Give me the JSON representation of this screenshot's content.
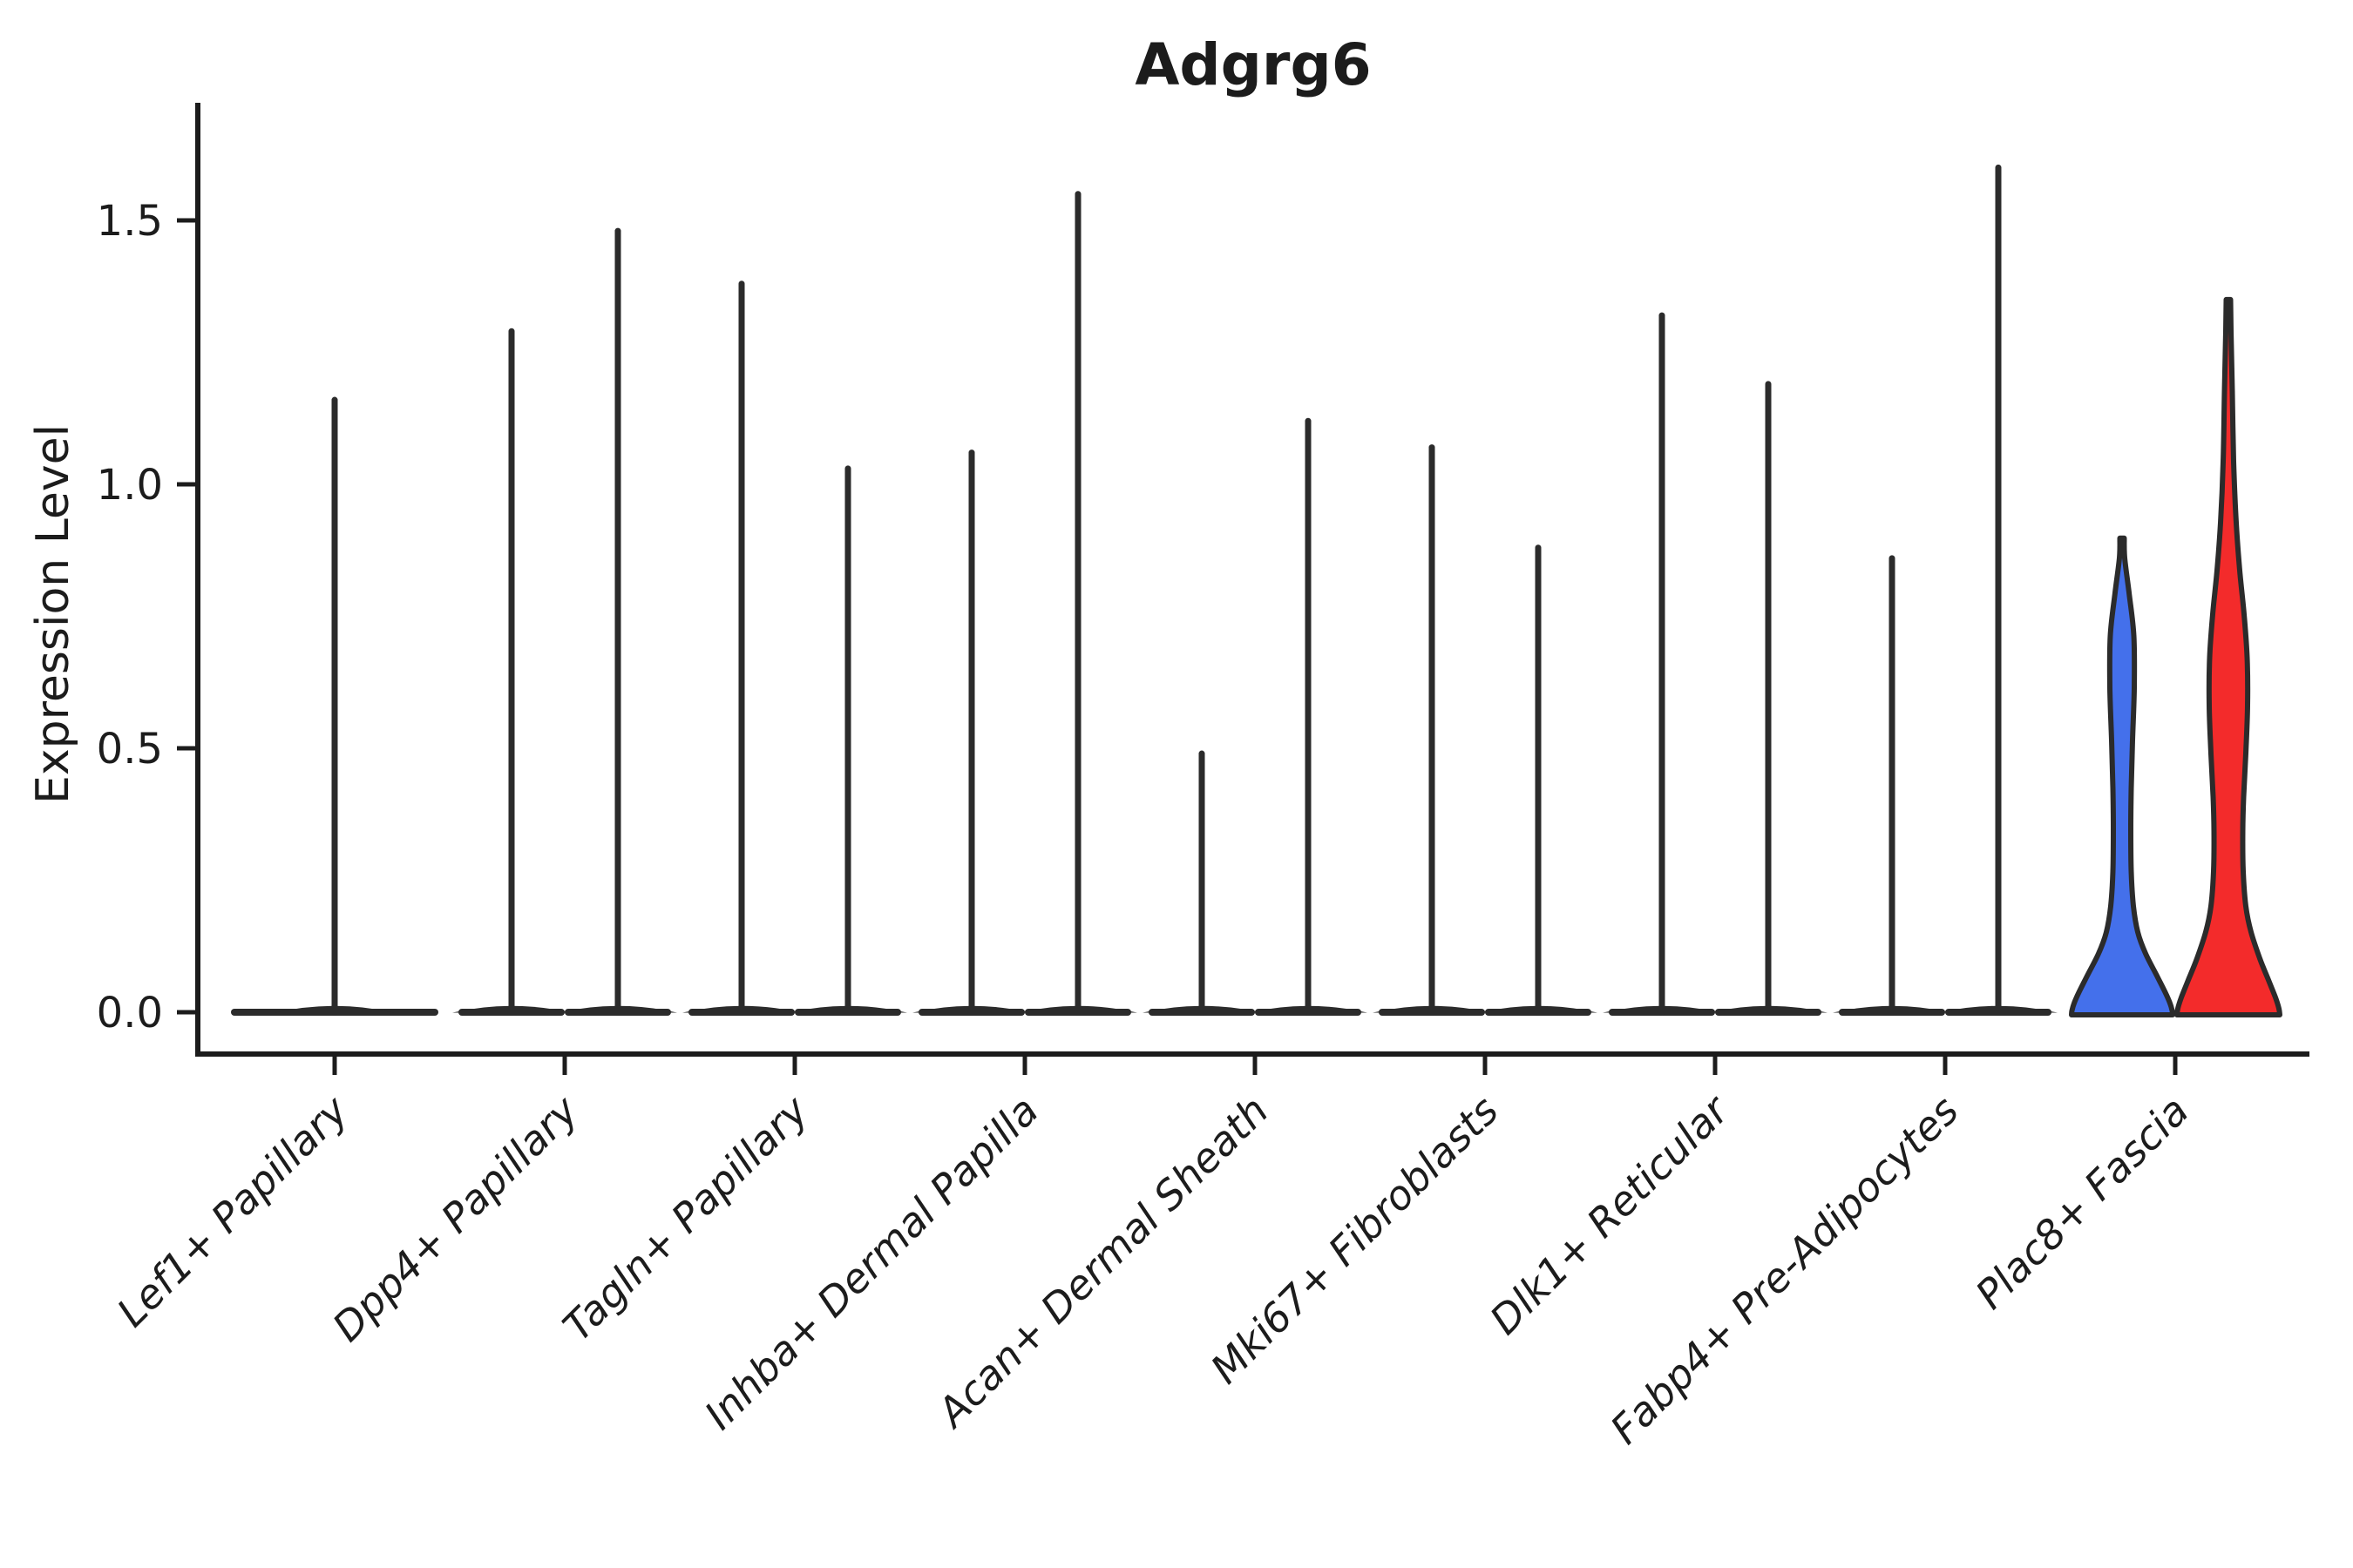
{
  "title": "Adgrg6",
  "chart_data": {
    "type": "violin",
    "title": "Adgrg6",
    "xlabel": "",
    "ylabel": "Expression Level",
    "ytick_labels": [
      "0.0",
      "0.5",
      "1.0",
      "1.5"
    ],
    "ytick_values": [
      0.0,
      0.5,
      1.0,
      1.5
    ],
    "ylim": [
      -0.09,
      1.77
    ],
    "grid": "off",
    "legend": "none",
    "categories": [
      "Lef1+ Papillary",
      "Dpp4+ Papillary",
      "Tagln+ Papillary",
      "Inhba+ Dermal Papilla",
      "Acan+ Dermal Sheath",
      "Mki67+ Fibroblasts",
      "Dlk1+ Reticular",
      "Fabp4+ Pre-Adipocytes",
      "Plac8+ Fascia"
    ],
    "groups": [
      {
        "name": "split-group-1",
        "color": "#4470EB"
      },
      {
        "name": "split-group-2",
        "color": "#F32B2B"
      }
    ],
    "violins": [
      {
        "category": "Lef1+ Papillary",
        "cat_index": 0,
        "slot": "center",
        "max_expression": 1.16,
        "body": "flat"
      },
      {
        "category": "Dpp4+ Papillary",
        "cat_index": 1,
        "slot": "left",
        "max_expression": 1.29,
        "body": "flat"
      },
      {
        "category": "Dpp4+ Papillary",
        "cat_index": 1,
        "slot": "right",
        "max_expression": 1.48,
        "body": "flat"
      },
      {
        "category": "Tagln+ Papillary",
        "cat_index": 2,
        "slot": "left",
        "max_expression": 1.38,
        "body": "flat"
      },
      {
        "category": "Tagln+ Papillary",
        "cat_index": 2,
        "slot": "right",
        "max_expression": 1.03,
        "body": "flat"
      },
      {
        "category": "Inhba+ Dermal Papilla",
        "cat_index": 3,
        "slot": "left",
        "max_expression": 1.06,
        "body": "flat"
      },
      {
        "category": "Inhba+ Dermal Papilla",
        "cat_index": 3,
        "slot": "right",
        "max_expression": 1.55,
        "body": "flat"
      },
      {
        "category": "Acan+ Dermal Sheath",
        "cat_index": 4,
        "slot": "left",
        "max_expression": 0.49,
        "body": "flat"
      },
      {
        "category": "Acan+ Dermal Sheath",
        "cat_index": 4,
        "slot": "right",
        "max_expression": 1.12,
        "body": "flat"
      },
      {
        "category": "Mki67+ Fibroblasts",
        "cat_index": 5,
        "slot": "left",
        "max_expression": 1.07,
        "body": "flat"
      },
      {
        "category": "Mki67+ Fibroblasts",
        "cat_index": 5,
        "slot": "right",
        "max_expression": 0.88,
        "body": "flat"
      },
      {
        "category": "Dlk1+ Reticular",
        "cat_index": 6,
        "slot": "left",
        "max_expression": 1.32,
        "body": "flat"
      },
      {
        "category": "Dlk1+ Reticular",
        "cat_index": 6,
        "slot": "right",
        "max_expression": 1.19,
        "body": "flat"
      },
      {
        "category": "Fabp4+ Pre-Adipocytes",
        "cat_index": 7,
        "slot": "left",
        "max_expression": 0.86,
        "body": "flat"
      },
      {
        "category": "Fabp4+ Pre-Adipocytes",
        "cat_index": 7,
        "slot": "right",
        "max_expression": 1.6,
        "body": "flat"
      },
      {
        "category": "Plac8+ Fascia",
        "cat_index": 8,
        "slot": "left",
        "max_expression": 0.9,
        "body": "filled",
        "fill": "#4470EB",
        "profile": [
          [
            0.898,
            0.042
          ],
          [
            0.861,
            0.05
          ],
          [
            0.795,
            0.133
          ],
          [
            0.713,
            0.225
          ],
          [
            0.614,
            0.233
          ],
          [
            0.515,
            0.2
          ],
          [
            0.424,
            0.175
          ],
          [
            0.35,
            0.167
          ],
          [
            0.267,
            0.175
          ],
          [
            0.201,
            0.217
          ],
          [
            0.152,
            0.3
          ],
          [
            0.111,
            0.45
          ],
          [
            0.069,
            0.667
          ],
          [
            0.036,
            0.833
          ],
          [
            0.017,
            0.917
          ],
          [
            0.003,
            0.958
          ],
          [
            -0.005,
            0.967
          ]
        ]
      },
      {
        "category": "Plac8+ Fascia",
        "cat_index": 8,
        "slot": "right",
        "max_expression": 1.35,
        "body": "filled",
        "fill": "#F32B2B",
        "profile": [
          [
            1.35,
            0.042
          ],
          [
            1.29,
            0.05
          ],
          [
            1.175,
            0.075
          ],
          [
            1.043,
            0.1
          ],
          [
            0.927,
            0.15
          ],
          [
            0.837,
            0.217
          ],
          [
            0.754,
            0.3
          ],
          [
            0.672,
            0.358
          ],
          [
            0.581,
            0.367
          ],
          [
            0.49,
            0.333
          ],
          [
            0.408,
            0.292
          ],
          [
            0.342,
            0.275
          ],
          [
            0.267,
            0.283
          ],
          [
            0.201,
            0.333
          ],
          [
            0.152,
            0.433
          ],
          [
            0.102,
            0.6
          ],
          [
            0.061,
            0.767
          ],
          [
            0.028,
            0.9
          ],
          [
            0.007,
            0.967
          ],
          [
            -0.005,
            0.983
          ]
        ]
      }
    ],
    "colors": {
      "outline": "#2b2b2b",
      "axis": "#1c1c1c",
      "background": "#ffffff",
      "blue": "#4470EB",
      "red": "#F32B2B"
    }
  }
}
